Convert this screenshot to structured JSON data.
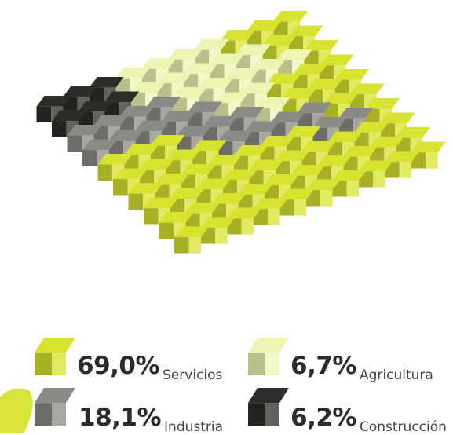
{
  "chart_data": {
    "type": "waffle",
    "title": "",
    "total_units": 100,
    "categories": [
      "Servicios",
      "Industria",
      "Agricultura",
      "Construcción"
    ],
    "values": [
      69.0,
      18.1,
      6.7,
      6.2
    ],
    "series": [
      {
        "name": "Servicios",
        "value": 69.0,
        "display": "69,0%",
        "color": "#d8e330"
      },
      {
        "name": "Agricultura",
        "value": 6.7,
        "display": "6,7%",
        "color": "#eef5b4"
      },
      {
        "name": "Industria",
        "value": 18.1,
        "display": "18,1%",
        "color": "#8c8a86"
      },
      {
        "name": "Construcción",
        "value": 6.2,
        "display": "6,2%",
        "color": "#2c2c28"
      }
    ],
    "legend_position": "bottom"
  }
}
